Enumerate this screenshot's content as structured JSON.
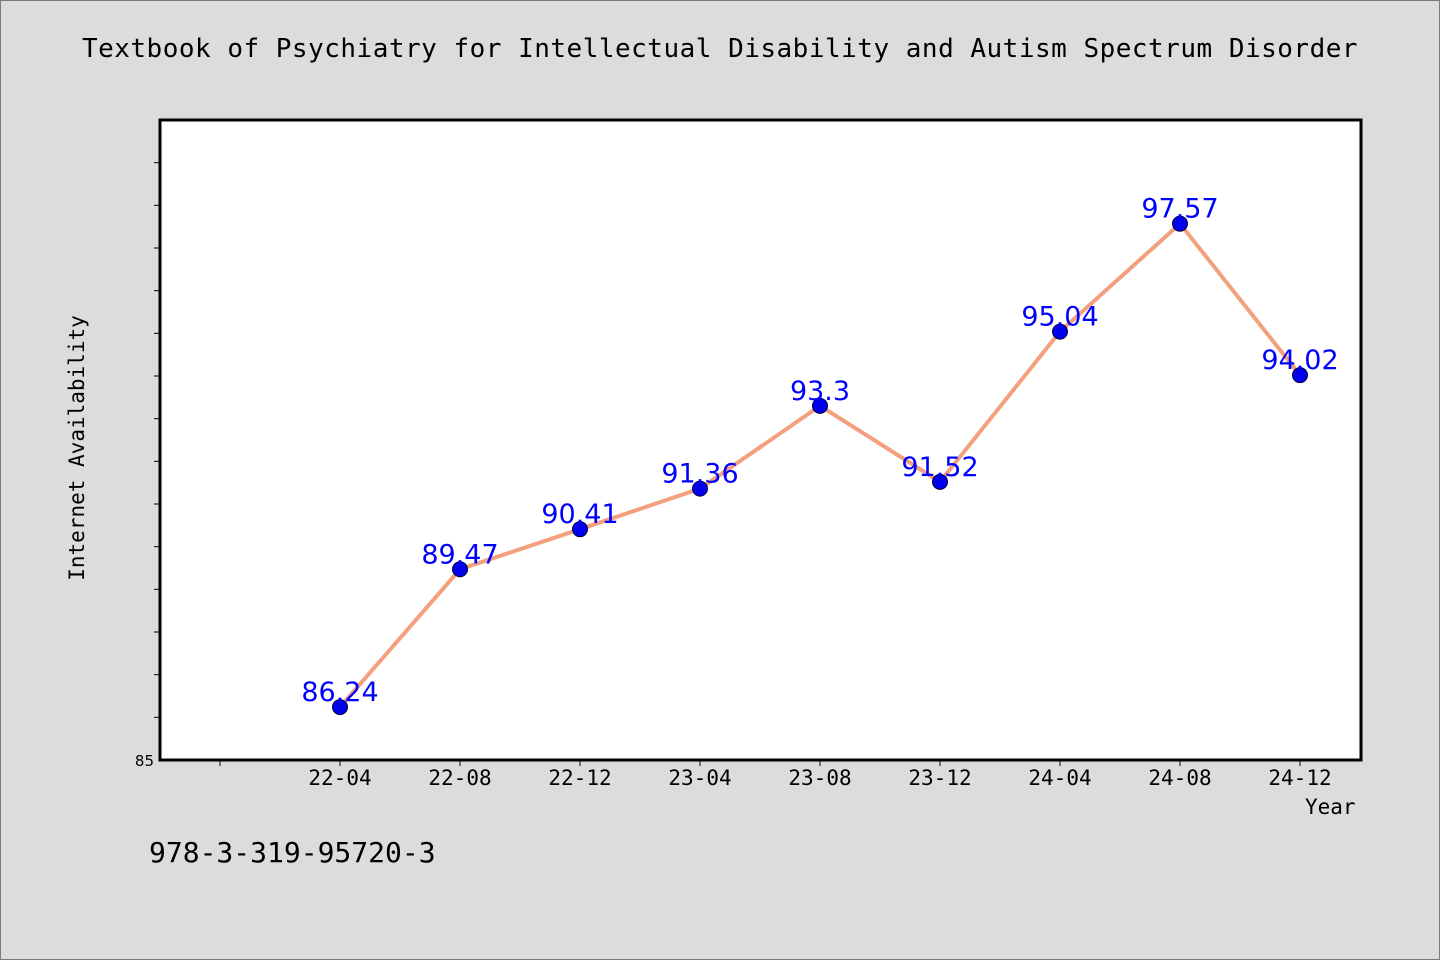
{
  "footer": {
    "isbn": "978-3-319-95720-3"
  },
  "colors": {
    "line": "#f4a07e",
    "marker": "#0000ee",
    "label": "#0000ff",
    "background": "#dcdcdc",
    "plot_background": "#ffffff"
  },
  "chart_data": {
    "type": "line",
    "title": "Textbook of Psychiatry for Intellectual Disability and Autism Spectrum Disorder",
    "xlabel": "Year",
    "ylabel": "Internet Availability",
    "categories": [
      "22-04",
      "22-08",
      "22-12",
      "23-04",
      "23-08",
      "23-12",
      "24-04",
      "24-08",
      "24-12"
    ],
    "values": [
      86.24,
      89.47,
      90.41,
      91.36,
      93.3,
      91.52,
      95.04,
      97.57,
      94.02
    ],
    "data_labels": [
      "86.24",
      "89.47",
      "90.41",
      "91.36",
      "93.3",
      "91.52",
      "95.04",
      "97.57",
      "94.02"
    ],
    "ylim": [
      85,
      100
    ],
    "y_tick_labels": [
      "85"
    ],
    "grid": false,
    "legend": "none"
  }
}
